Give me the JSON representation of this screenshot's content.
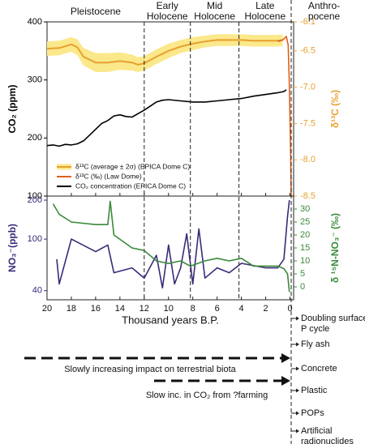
{
  "chart_data": [
    {
      "type": "line",
      "periods": {
        "labels": [
          [
            "Pleistocene"
          ],
          [
            "Early",
            "Holocene"
          ],
          [
            "Mid",
            "Holocene"
          ],
          [
            "Late",
            "Holocene"
          ],
          [
            "Anthro-",
            "pocene"
          ]
        ],
        "boundaries": [
          12,
          8.2,
          4.2,
          -0.1
        ]
      },
      "ylabel": "CO₂ (ppm)",
      "y2label": "δ¹³C (‰)",
      "xlim": [
        20,
        -0.3
      ],
      "xticks": [
        20,
        18,
        16,
        14,
        12,
        10,
        8,
        6,
        4,
        2,
        0
      ],
      "ylim": [
        100,
        400
      ],
      "yticks": [
        100,
        200,
        300,
        400
      ],
      "y2lim": [
        -8.5,
        -6.1
      ],
      "y2ticks": [
        -6.1,
        -6.5,
        {
          "value": -7,
          "label": "-7.0"
        },
        -7.5,
        {
          "value": -8,
          "label": "-8.0"
        },
        -8.5
      ],
      "legend": "lower left",
      "series": [
        {
          "name": "δ¹³C (average ± 2σ) (EPICA Dome C)",
          "color": "#e8a030",
          "band_color": "#fbe88a",
          "axis": "y2",
          "x": [
            20,
            19,
            18,
            17.5,
            17,
            16,
            15,
            14,
            13,
            12.5,
            12,
            11,
            10,
            9,
            8,
            7,
            6,
            5,
            4,
            3,
            2,
            1,
            0.6
          ],
          "values": [
            -6.47,
            -6.46,
            -6.41,
            -6.45,
            -6.58,
            -6.66,
            -6.66,
            -6.64,
            -6.66,
            -6.69,
            -6.67,
            -6.58,
            -6.5,
            -6.44,
            -6.4,
            -6.37,
            -6.35,
            -6.35,
            -6.35,
            -6.36,
            -6.36,
            -6.36,
            -6.35
          ],
          "errors": [
            0.1,
            0.1,
            0.1,
            0.11,
            0.12,
            0.13,
            0.13,
            0.12,
            0.11,
            0.1,
            0.1,
            0.1,
            0.1,
            0.09,
            0.09,
            0.08,
            0.08,
            0.08,
            0.08,
            0.08,
            0.08,
            0.08,
            0.08
          ]
        },
        {
          "name": "δ¹³C (‰) (Law Dome)",
          "color": "#e0601a",
          "axis": "y2",
          "x": [
            1.0,
            0.6,
            0.3,
            0.15,
            0.05,
            -0.05,
            -0.1
          ],
          "values": [
            -6.37,
            -6.35,
            -6.3,
            -6.42,
            -7.0,
            -7.9,
            -8.5
          ]
        },
        {
          "name": "CO₂ concentration (EPICA Dome C)",
          "color": "#000000",
          "x": [
            20,
            19.5,
            19,
            18.5,
            18,
            17.5,
            17,
            16.5,
            16,
            15.5,
            15,
            14.5,
            14,
            13.5,
            13,
            12.5,
            12,
            11.5,
            11,
            10.5,
            10,
            9,
            8,
            7,
            6,
            5,
            4,
            3,
            2,
            1,
            0.5,
            0.3
          ],
          "values": [
            187,
            188,
            186,
            189,
            188,
            190,
            195,
            205,
            215,
            225,
            230,
            238,
            240,
            237,
            236,
            242,
            248,
            255,
            262,
            265,
            266,
            264,
            262,
            262,
            264,
            266,
            268,
            272,
            275,
            278,
            280,
            283
          ]
        }
      ]
    },
    {
      "type": "line",
      "ylabel": "NO₃⁻(ppb)",
      "y2label": "δ ¹⁵N-NO₃⁻ (‰)",
      "xlabel": "Thousand years B.P.",
      "xlim": [
        20,
        -0.3
      ],
      "xticks": [
        20,
        18,
        16,
        14,
        12,
        10,
        8,
        6,
        4,
        2,
        0
      ],
      "ylim": [
        34,
        215
      ],
      "yscale": "log",
      "yticks": [
        40,
        100,
        200
      ],
      "y2lim": [
        -5,
        35
      ],
      "y2ticks": [
        0,
        5,
        10,
        15,
        20,
        25,
        30
      ],
      "series": [
        {
          "name": "NO₃⁻",
          "color": "#3b2a7a",
          "x": [
            19.2,
            19,
            18,
            16,
            15,
            14.5,
            13,
            12,
            11,
            10.5,
            10,
            9.5,
            9,
            8.5,
            8,
            7.5,
            7,
            6,
            5,
            4,
            2,
            1,
            0.5,
            0.2,
            0.05
          ],
          "values": [
            70,
            45,
            100,
            80,
            90,
            55,
            60,
            50,
            75,
            42,
            90,
            45,
            60,
            110,
            45,
            120,
            50,
            60,
            55,
            65,
            60,
            60,
            70,
            150,
            200
          ]
        },
        {
          "name": "δ¹⁵N-NO₃⁻",
          "color": "#3a8a3a",
          "axis": "y2",
          "x": [
            19.5,
            19,
            18,
            16,
            15,
            14.8,
            14.5,
            13,
            12,
            11,
            10,
            9,
            8.2,
            7,
            6,
            5,
            4,
            3,
            2,
            1,
            0.5,
            0.2,
            0.05
          ],
          "values": [
            32,
            28,
            25,
            24,
            24,
            33,
            20,
            15,
            14,
            10,
            9,
            10,
            8,
            10,
            11,
            10,
            11,
            8,
            8,
            8,
            7,
            5,
            -2
          ]
        }
      ],
      "annotations": {
        "events": [
          [
            "Doubling surface",
            "P cycle"
          ],
          [
            "Fly ash"
          ],
          [
            "Concrete"
          ],
          [
            "Plastic"
          ],
          [
            "POPs"
          ],
          [
            "Artificial",
            "radionuclides"
          ]
        ],
        "trends": [
          "Slowly increasing impact on terrestrial biota",
          "Slow inc. in CO₂ from ?farming"
        ]
      }
    }
  ]
}
